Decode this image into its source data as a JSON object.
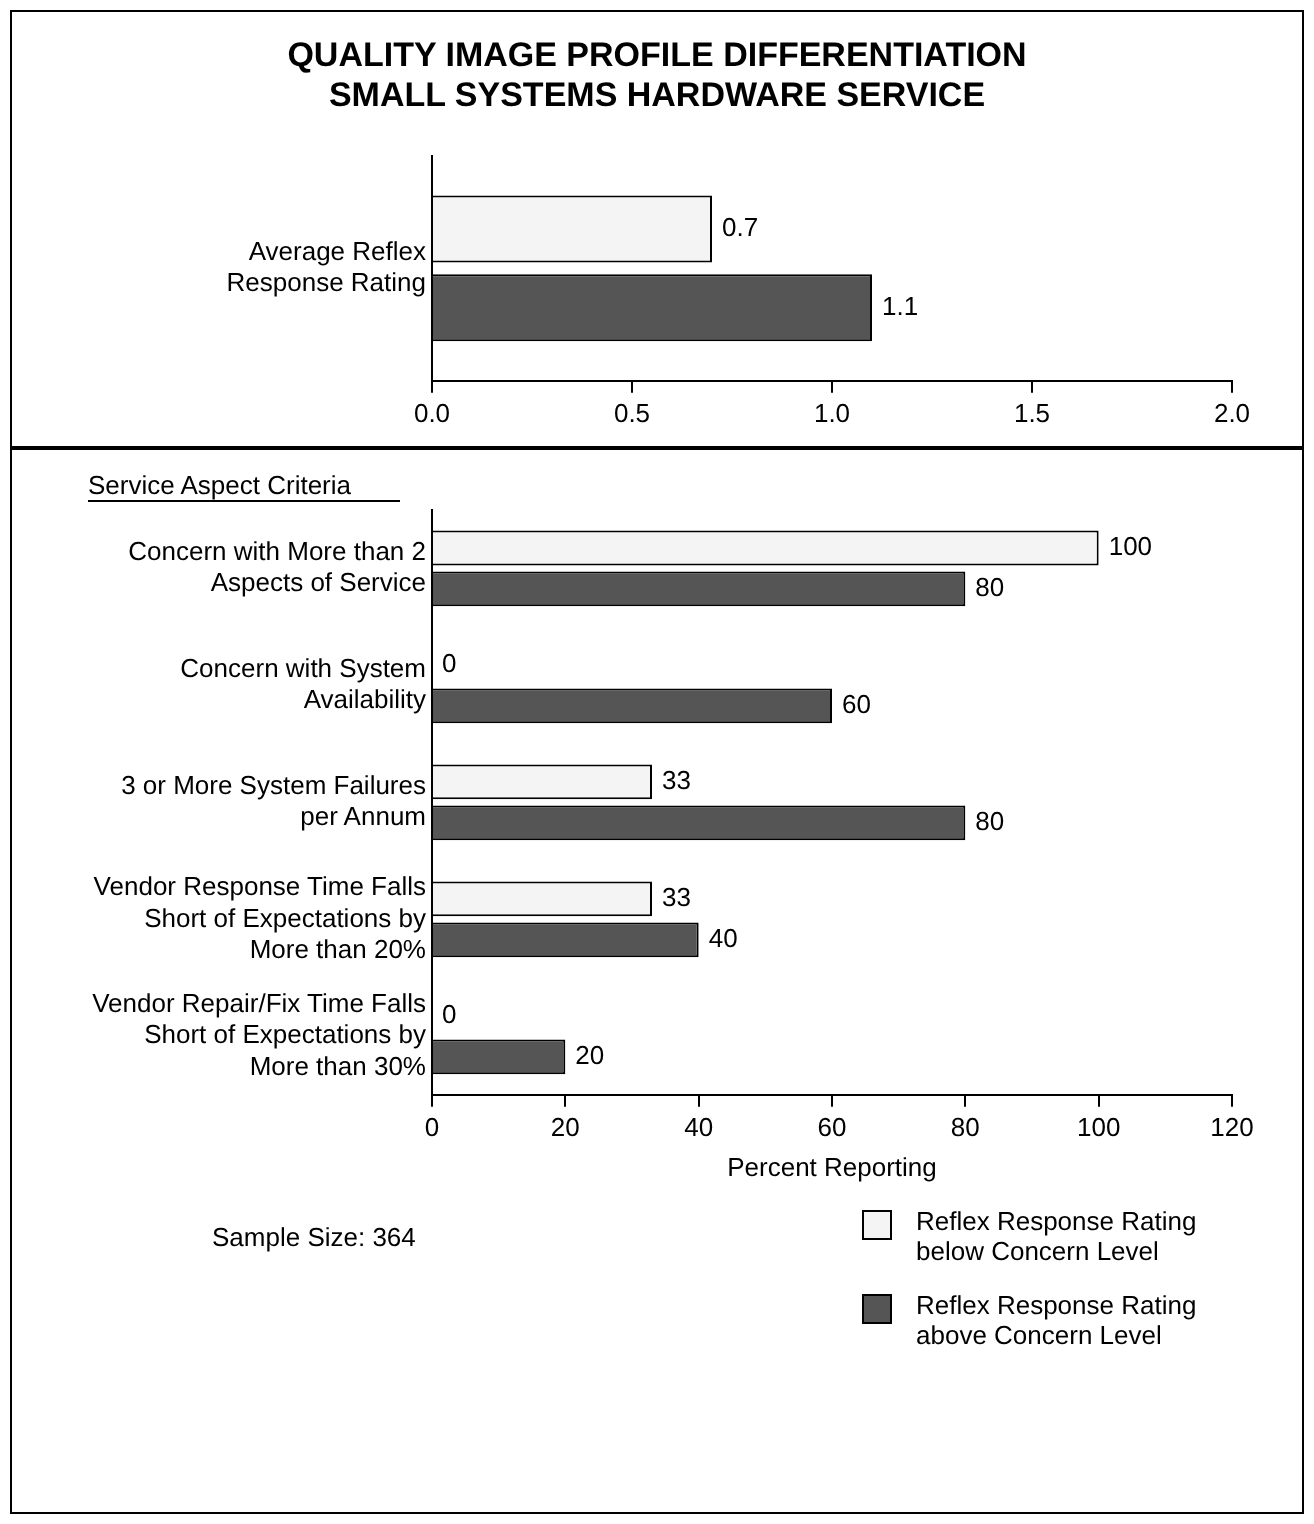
{
  "chart_data": [
    {
      "type": "bar",
      "orientation": "horizontal",
      "title": "QUALITY IMAGE PROFILE DIFFERENTIATION SMALL SYSTEMS HARDWARE SERVICE",
      "categories": [
        "Average Reflex Response Rating"
      ],
      "series": [
        {
          "color": "#f4f4f4",
          "values": [
            0.7
          ]
        },
        {
          "color": "#555555",
          "values": [
            1.1
          ]
        }
      ],
      "xlim": [
        0,
        2
      ],
      "xticks": [
        {
          "value": 0,
          "label": "0.0"
        },
        {
          "value": 0.5,
          "label": "0.5"
        },
        {
          "value": 1,
          "label": "1.0"
        },
        {
          "value": 1.5,
          "label": "1.5"
        },
        {
          "value": 2,
          "label": "2.0"
        }
      ],
      "grid": false,
      "data_labels": true
    },
    {
      "type": "bar",
      "orientation": "horizontal",
      "ylabel": "Service Aspect Criteria",
      "xlabel": "Percent Reporting",
      "categories": [
        "Concern with More than 2 Aspects of Service",
        "Concern with System Availability",
        "3 or More System Failures per Annum",
        "Vendor Response Time Falls Short of Expectations by More than 20%",
        "Vendor Repair/Fix Time Falls Short of Expectations by More than 30%"
      ],
      "series": [
        {
          "name": "Reflex Response Rating below Concern Level",
          "color": "#f4f4f4",
          "values": [
            100,
            0,
            33,
            33,
            0
          ]
        },
        {
          "name": "Reflex Response Rating above Concern Level",
          "color": "#555555",
          "values": [
            80,
            60,
            80,
            40,
            20
          ]
        }
      ],
      "xlim": [
        0,
        120
      ],
      "xticks": [
        0,
        20,
        40,
        60,
        80,
        100,
        120
      ],
      "grid": false,
      "data_labels": true,
      "legend": "bottom right",
      "annotations": [
        "Sample Size: 364"
      ]
    }
  ]
}
